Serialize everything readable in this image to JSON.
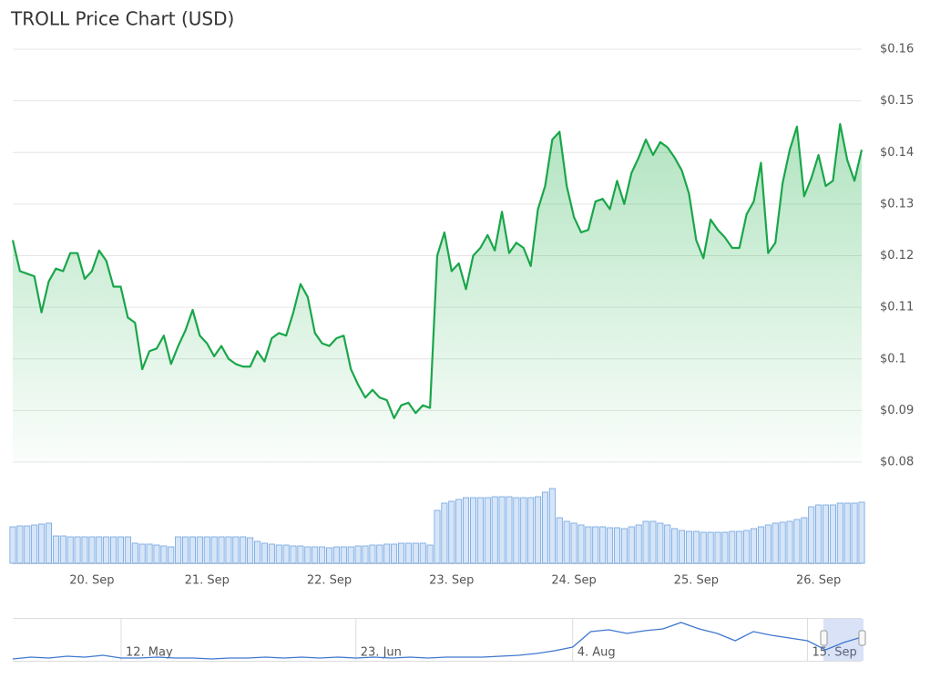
{
  "chart_data": [
    {
      "type": "line",
      "title": "TROLL Price Chart (USD)",
      "color": "#1aa64a",
      "categories": [
        null,
        null,
        null,
        null,
        null,
        null,
        null,
        null,
        null,
        null,
        null,
        "20. Sep",
        null,
        null,
        null,
        null,
        null,
        null,
        null,
        null,
        null,
        null,
        null,
        null,
        null,
        null,
        null,
        "21. Sep",
        null,
        null,
        null,
        null,
        null,
        null,
        null,
        null,
        null,
        null,
        null,
        null,
        null,
        null,
        null,
        null,
        "22. Sep",
        null,
        null,
        null,
        null,
        null,
        null,
        null,
        null,
        null,
        null,
        null,
        null,
        null,
        null,
        null,
        null,
        "23. Sep",
        null,
        null,
        null,
        null,
        null,
        null,
        null,
        null,
        null,
        null,
        null,
        null,
        null,
        null,
        null,
        null,
        "24. Sep",
        null,
        null,
        null,
        null,
        null,
        null,
        null,
        null,
        null,
        null,
        null,
        null,
        null,
        null,
        null,
        null,
        "25. Sep",
        null,
        null,
        null,
        null,
        null,
        null,
        null,
        null,
        null,
        null,
        null,
        null,
        null,
        null,
        null,
        null,
        "26. Sep",
        null,
        null,
        null,
        null,
        null,
        null
      ],
      "values": [
        0.123,
        0.117,
        0.1165,
        0.116,
        0.109,
        0.115,
        0.1175,
        0.117,
        0.1205,
        0.1205,
        0.1155,
        0.117,
        0.121,
        0.119,
        0.114,
        0.114,
        0.108,
        0.107,
        0.098,
        0.1015,
        0.102,
        0.1045,
        0.099,
        0.1025,
        0.1055,
        0.1095,
        0.1045,
        0.103,
        0.1005,
        0.1025,
        0.1,
        0.099,
        0.0985,
        0.0985,
        0.1015,
        0.0995,
        0.104,
        0.105,
        0.1045,
        0.109,
        0.1145,
        0.112,
        0.105,
        0.103,
        0.1025,
        0.104,
        0.1045,
        0.098,
        0.095,
        0.0925,
        0.094,
        0.0925,
        0.092,
        0.0885,
        0.091,
        0.0915,
        0.0895,
        0.091,
        0.0905,
        0.12,
        0.1245,
        0.117,
        0.1185,
        0.1135,
        0.12,
        0.1215,
        0.124,
        0.121,
        0.1285,
        0.1205,
        0.1225,
        0.1215,
        0.118,
        0.129,
        0.1335,
        0.1425,
        0.144,
        0.1335,
        0.1275,
        0.1245,
        0.125,
        0.1305,
        0.131,
        0.129,
        0.1345,
        0.13,
        0.136,
        0.139,
        0.1425,
        0.1395,
        0.142,
        0.141,
        0.139,
        0.1365,
        0.132,
        0.123,
        0.1195,
        0.127,
        0.125,
        0.1235,
        0.1215,
        0.1215,
        0.128,
        0.1305,
        0.138,
        0.1205,
        0.1225,
        0.134,
        0.1405,
        0.145,
        0.1315,
        0.135,
        0.1395,
        0.1335,
        0.1345,
        0.1455,
        0.1385,
        0.1345,
        0.1405
      ],
      "ylim": [
        0.08,
        0.16
      ],
      "yticks": [
        {
          "value": 0.08,
          "label": "$0.08"
        },
        {
          "value": 0.09,
          "label": "$0.09"
        },
        {
          "value": 0.1,
          "label": "$0.1"
        },
        {
          "value": 0.11,
          "label": "$0.11"
        },
        {
          "value": 0.12,
          "label": "$0.12"
        },
        {
          "value": 0.13,
          "label": "$0.13"
        },
        {
          "value": 0.14,
          "label": "$0.14"
        },
        {
          "value": 0.15,
          "label": "$0.15"
        },
        {
          "value": 0.16,
          "label": "$0.16"
        }
      ],
      "grid": true
    },
    {
      "type": "bar",
      "color": "#6fa3e0",
      "values": [
        40,
        41,
        41,
        42,
        43,
        44,
        30,
        30,
        29,
        29,
        29,
        29,
        29,
        29,
        29,
        29,
        29,
        22,
        21,
        21,
        20,
        19,
        18,
        29,
        29,
        29,
        29,
        29,
        29,
        29,
        29,
        29,
        29,
        28,
        24,
        22,
        21,
        20,
        20,
        19,
        19,
        18,
        18,
        18,
        17,
        18,
        18,
        18,
        19,
        19,
        20,
        20,
        21,
        21,
        22,
        22,
        22,
        22,
        20,
        58,
        66,
        68,
        70,
        72,
        72,
        72,
        72,
        73,
        73,
        73,
        72,
        72,
        72,
        73,
        78,
        82,
        50,
        46,
        44,
        42,
        40,
        40,
        40,
        39,
        39,
        38,
        40,
        42,
        46,
        46,
        44,
        42,
        38,
        36,
        35,
        35,
        34,
        34,
        34,
        34,
        35,
        35,
        36,
        38,
        40,
        42,
        44,
        45,
        46,
        48,
        50,
        62,
        64,
        64,
        64,
        66,
        66,
        66,
        67
      ]
    },
    {
      "type": "line",
      "color": "#3f78cf",
      "categories": [
        null,
        null,
        null,
        null,
        null,
        null,
        "12. May",
        null,
        null,
        null,
        null,
        null,
        null,
        null,
        null,
        null,
        null,
        null,
        null,
        "23. Jun",
        null,
        null,
        null,
        null,
        null,
        null,
        null,
        null,
        null,
        null,
        null,
        "4. Aug",
        null,
        null,
        null,
        null,
        null,
        null,
        null,
        null,
        null,
        null,
        null,
        null,
        "15. Sep",
        null,
        null,
        null
      ],
      "values": [
        2,
        4,
        3,
        5,
        4,
        6,
        3,
        3,
        4,
        3,
        3,
        2,
        3,
        3,
        4,
        3,
        4,
        3,
        4,
        3,
        4,
        3,
        4,
        3,
        4,
        4,
        4,
        5,
        6,
        8,
        11,
        15,
        32,
        34,
        30,
        33,
        35,
        42,
        35,
        30,
        22,
        32,
        28,
        25,
        22,
        12,
        20,
        26
      ]
    }
  ]
}
